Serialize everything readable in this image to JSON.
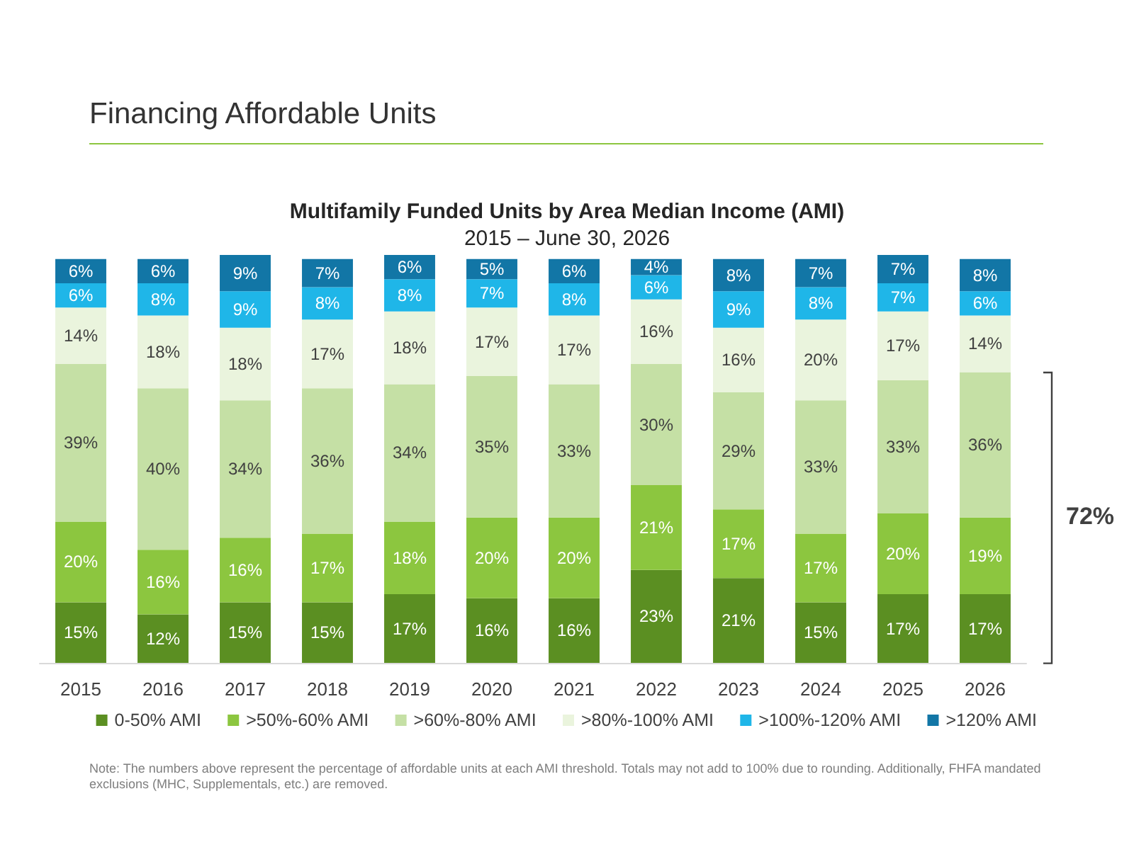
{
  "chart_data": {
    "type": "bar",
    "title": "Multifamily Funded Units by Area Median Income (AMI)",
    "subtitle": "2015 – June 30, 2026",
    "stacked": true,
    "legend": "bottom",
    "categories": [
      "2015",
      "2016",
      "2017",
      "2018",
      "2019",
      "2020",
      "2021",
      "2022",
      "2023",
      "2024",
      "2025",
      "2026"
    ],
    "series": [
      {
        "name": "0-50% AMI",
        "color": "#5b8f22",
        "values": [
          15,
          12,
          15,
          15,
          17,
          16,
          16,
          23,
          21,
          15,
          17,
          17
        ],
        "value_labels": [
          "15%",
          "12%",
          "15%",
          "15%",
          "17%",
          "16%",
          "16%",
          "23%",
          "21%",
          "15%",
          "17%",
          "17%"
        ]
      },
      {
        "name": ">50%-60% AMI",
        "color": "#8cc63f",
        "values": [
          20,
          16,
          16,
          17,
          18,
          20,
          20,
          21,
          17,
          17,
          20,
          19
        ],
        "value_labels": [
          "20%",
          "16%",
          "16%",
          "17%",
          "18%",
          "20%",
          "20%",
          "21%",
          "17%",
          "17%",
          "20%",
          "19%"
        ]
      },
      {
        "name": ">60%-80% AMI",
        "color": "#c5e0a5",
        "values": [
          39,
          40,
          34,
          36,
          34,
          35,
          33,
          30,
          29,
          33,
          33,
          36
        ],
        "value_labels": [
          "39%",
          "40%",
          "34%",
          "36%",
          "34%",
          "35%",
          "33%",
          "30%",
          "29%",
          "33%",
          "33%",
          "36%"
        ]
      },
      {
        "name": ">80%-100% AMI",
        "color": "#eaf4dd",
        "values": [
          14,
          18,
          18,
          17,
          18,
          17,
          17,
          16,
          16,
          20,
          17,
          14
        ],
        "value_labels": [
          "14%",
          "18%",
          "18%",
          "17%",
          "18%",
          "17%",
          "17%",
          "16%",
          "16%",
          "20%",
          "17%",
          "14%"
        ]
      },
      {
        "name": ">100%-120% AMI",
        "color": "#1fb6e8",
        "values": [
          6,
          8,
          9,
          8,
          8,
          7,
          8,
          6,
          9,
          8,
          7,
          6
        ],
        "value_labels": [
          "6%",
          "8%",
          "9%",
          "8%",
          "8%",
          "7%",
          "8%",
          "6%",
          "9%",
          "8%",
          "7%",
          "6%"
        ]
      },
      {
        "name": ">120% AMI",
        "color": "#1276a6",
        "values": [
          6,
          6,
          9,
          7,
          6,
          5,
          6,
          4,
          8,
          7,
          7,
          8
        ],
        "value_labels": [
          "6%",
          "6%",
          "9%",
          "7%",
          "6%",
          "5%",
          "6%",
          "4%",
          "8%",
          "7%",
          "7%",
          "8%"
        ]
      }
    ],
    "annotations": [
      "Financing Affordable Units",
      "72%",
      "Note: The numbers above represent the percentage of affordable units at each AMI threshold. Totals may not add to 100% due to rounding. Additionally, FHFA mandated exclusions (MHC, Supplementals, etc.) are removed."
    ]
  }
}
